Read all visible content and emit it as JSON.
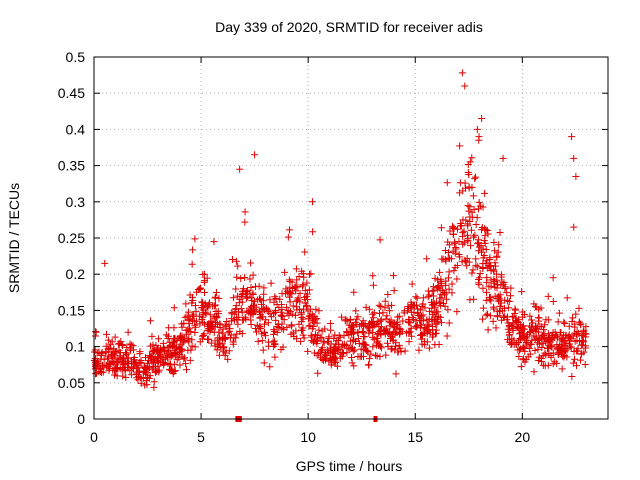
{
  "chart_data": {
    "type": "scatter",
    "title": "Day 339 of 2020, SRMTID for receiver adis",
    "xlabel": "GPS time / hours",
    "ylabel": "SRMTID / TECUs",
    "xlim": [
      0,
      24
    ],
    "ylim": [
      0,
      0.5
    ],
    "xticks": [
      0,
      5,
      10,
      15,
      20
    ],
    "xtick_labels": [
      "0",
      "5",
      "10",
      "15",
      "20"
    ],
    "yticks": [
      0,
      0.05,
      0.1,
      0.15,
      0.2,
      0.25,
      0.3,
      0.35,
      0.4,
      0.45,
      0.5
    ],
    "ytick_labels": [
      "0",
      "0.05",
      "0.1",
      "0.15",
      "0.2",
      "0.25",
      "0.3",
      "0.35",
      "0.4",
      "0.45",
      "0.5"
    ],
    "grid": true,
    "marker": "plus",
    "color": "#e00000",
    "x_range_of_points": [
      0.0,
      23.0
    ],
    "profile": {
      "x": [
        0,
        0.5,
        1,
        1.5,
        2,
        2.5,
        3,
        3.5,
        4,
        4.5,
        5,
        5.5,
        6,
        6.5,
        7,
        7.5,
        8,
        8.5,
        9,
        9.5,
        10,
        10.5,
        11,
        11.5,
        12,
        12.5,
        13,
        13.5,
        14,
        14.5,
        15,
        15.5,
        16,
        16.5,
        17,
        17.5,
        18,
        18.5,
        19,
        19.5,
        20,
        20.5,
        21,
        21.5,
        22,
        22.5,
        23
      ],
      "y": [
        0.08,
        0.085,
        0.08,
        0.09,
        0.075,
        0.07,
        0.085,
        0.09,
        0.095,
        0.13,
        0.15,
        0.14,
        0.12,
        0.13,
        0.16,
        0.15,
        0.13,
        0.14,
        0.15,
        0.17,
        0.16,
        0.1,
        0.09,
        0.1,
        0.12,
        0.11,
        0.12,
        0.13,
        0.12,
        0.13,
        0.14,
        0.13,
        0.15,
        0.2,
        0.25,
        0.27,
        0.25,
        0.2,
        0.16,
        0.13,
        0.11,
        0.12,
        0.11,
        0.1,
        0.1,
        0.11,
        0.1
      ]
    },
    "outliers": [
      {
        "x": 17.2,
        "y": 0.478
      },
      {
        "x": 18.1,
        "y": 0.415
      },
      {
        "x": 17.9,
        "y": 0.4
      },
      {
        "x": 7.5,
        "y": 0.365
      },
      {
        "x": 6.8,
        "y": 0.345
      },
      {
        "x": 22.3,
        "y": 0.39
      },
      {
        "x": 22.4,
        "y": 0.36
      },
      {
        "x": 22.5,
        "y": 0.335
      },
      {
        "x": 19.1,
        "y": 0.36
      },
      {
        "x": 10.2,
        "y": 0.3
      },
      {
        "x": 0.5,
        "y": 0.215
      },
      {
        "x": 5.6,
        "y": 0.245
      },
      {
        "x": 22.4,
        "y": 0.265
      }
    ],
    "zero_markers": [
      {
        "x_start": 6.6,
        "x_end": 6.9,
        "y": 0
      },
      {
        "x_start": 13.05,
        "x_end": 13.2,
        "y": 0
      }
    ]
  }
}
